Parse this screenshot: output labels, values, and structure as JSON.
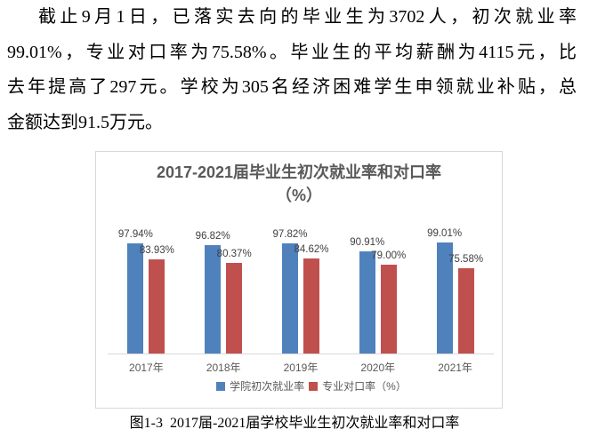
{
  "paragraph": {
    "full_text": "截止9月1日，已落实去向的毕业生为3702人，初次就业率99.01%，专业对口率为75.58%。毕业生的平均薪酬为4115元，比去年提高了297元。学校为305名经济困难学生申领就业补贴，总金额达到91.5万元。",
    "lines": [
      "截止9月1日，已落实去向的毕业生为3702人，初次就业率",
      "99.01%，专业对口率为75.58%。毕业生的平均薪酬为4115元，比",
      "去年提高了297元。学校为305名经济困难学生申领就业补贴，总",
      "金额达到91.5万元。"
    ]
  },
  "chart_data": {
    "type": "bar",
    "title": "2017-2021届毕业生初次就业率和对口率",
    "title_unit_line": "（%）",
    "categories": [
      "2017年",
      "2018年",
      "2019年",
      "2020年",
      "2021年"
    ],
    "series": [
      {
        "name": "学院初次就业率",
        "color": "#4F81BD",
        "values": [
          97.94,
          96.82,
          97.82,
          90.91,
          99.01
        ],
        "labels": [
          "97.94%",
          "96.82%",
          "97.82%",
          "90.91%",
          "99.01%"
        ]
      },
      {
        "name": "专业对口率（%）",
        "color": "#C0504D",
        "values": [
          83.93,
          80.37,
          84.62,
          79.0,
          75.58
        ],
        "labels": [
          "83.93%",
          "80.37%",
          "84.62%",
          "79.00%",
          "75.58%"
        ]
      }
    ],
    "ylim": [
      0,
      110
    ],
    "y_axis_visible": false,
    "grid": false,
    "data_labels": true,
    "legend_position": "bottom"
  },
  "figure_caption": "图1-3  2017届-2021届学校毕业生初次就业率和对口率",
  "colors": {
    "bar_blue": "#4F81BD",
    "bar_red": "#C0504D",
    "chart_border": "#D8D8D8",
    "axis_line": "#D9D9D9",
    "title_gray": "#595959",
    "data_label_gray": "#404040"
  }
}
